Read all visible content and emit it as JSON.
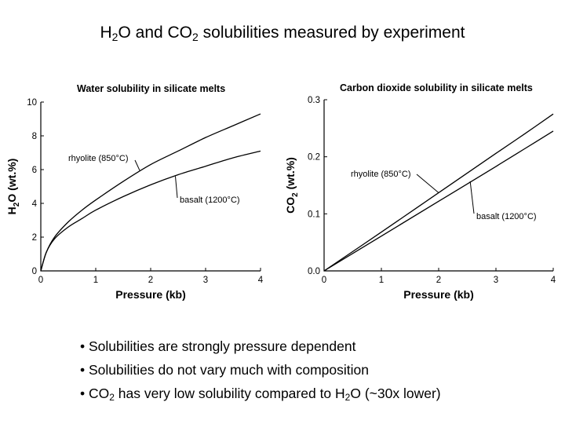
{
  "slide": {
    "title_parts": [
      "H",
      "2",
      "O and CO",
      "2",
      " solubilities measured by experiment"
    ]
  },
  "bullets": [
    {
      "parts": [
        "• Solubilities are strongly pressure dependent"
      ]
    },
    {
      "parts": [
        "• Solubilities do not vary much with composition"
      ]
    },
    {
      "parts": [
        "• CO",
        "2",
        " has very low solubility compared to H",
        "2",
        "O (~30x lower)"
      ]
    }
  ],
  "chart_data": [
    {
      "type": "line",
      "title": "Water solubility in silicate melts",
      "xlabel": "Pressure (kb)",
      "ylabel_parts": [
        "H",
        "2",
        "O  (wt.%)"
      ],
      "xlim": [
        0,
        4
      ],
      "ylim": [
        0,
        10
      ],
      "xticks": [
        0,
        1,
        2,
        3,
        4
      ],
      "yticks": [
        0,
        2,
        4,
        6,
        8,
        10
      ],
      "grid": false,
      "series": [
        {
          "name": "rhyolite (850°C)",
          "x": [
            0,
            0.1,
            0.25,
            0.5,
            0.75,
            1,
            1.5,
            2,
            2.5,
            3,
            3.5,
            4
          ],
          "y": [
            0,
            1.1,
            2.0,
            2.9,
            3.6,
            4.2,
            5.3,
            6.3,
            7.1,
            7.9,
            8.6,
            9.3
          ]
        },
        {
          "name": "basalt (1200°C)",
          "x": [
            0,
            0.1,
            0.25,
            0.5,
            0.75,
            1,
            1.5,
            2,
            2.5,
            3,
            3.5,
            4
          ],
          "y": [
            0,
            1.1,
            1.9,
            2.6,
            3.1,
            3.6,
            4.4,
            5.1,
            5.7,
            6.2,
            6.7,
            7.1
          ]
        }
      ]
    },
    {
      "type": "line",
      "title": "Carbon dioxide solubility in silicate melts",
      "xlabel": "Pressure (kb)",
      "ylabel_parts": [
        "CO",
        "2",
        "  (wt.%)"
      ],
      "xlim": [
        0,
        4
      ],
      "ylim": [
        0,
        0.3
      ],
      "xticks": [
        0,
        1,
        2,
        3,
        4
      ],
      "yticks": [
        0.0,
        0.1,
        0.2,
        0.3
      ],
      "ytick_labels": [
        "0.0",
        "0.1",
        "0.2",
        "0.3"
      ],
      "grid": false,
      "series": [
        {
          "name": "rhyolite (850°C)",
          "x": [
            0,
            1,
            2,
            3,
            3.5,
            4
          ],
          "y": [
            0,
            0.068,
            0.137,
            0.206,
            0.24,
            0.275
          ]
        },
        {
          "name": "basalt (1200°C)",
          "x": [
            0,
            1,
            2,
            3,
            3.5,
            4
          ],
          "y": [
            0,
            0.061,
            0.122,
            0.183,
            0.214,
            0.245
          ]
        }
      ]
    }
  ]
}
